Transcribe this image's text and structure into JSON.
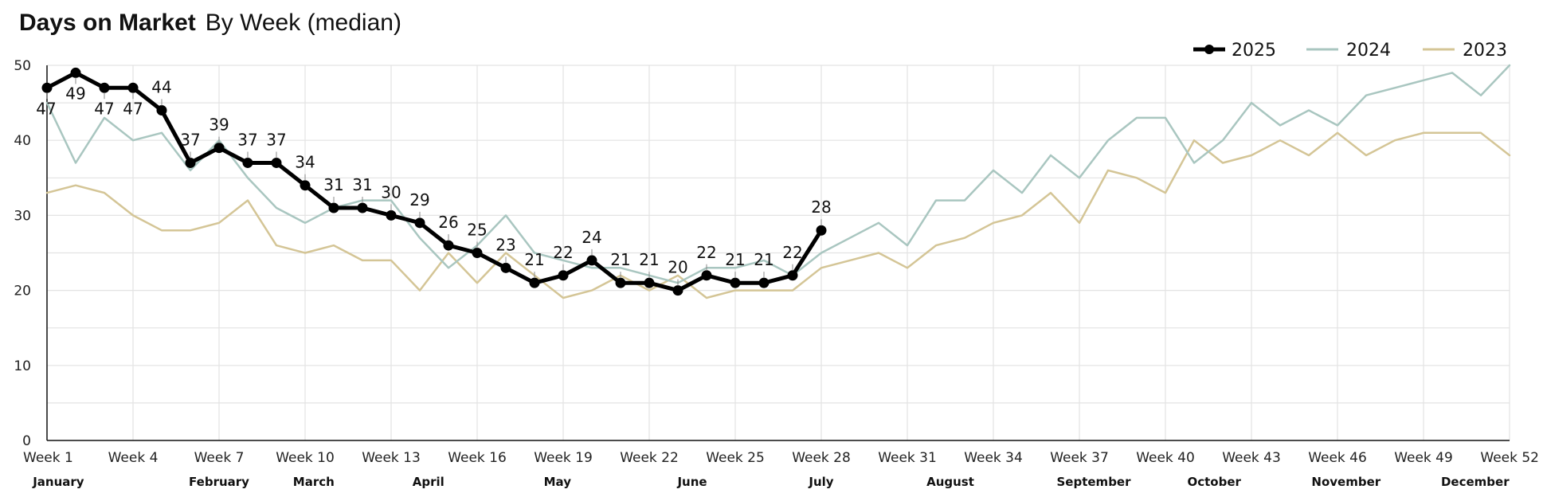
{
  "chart_data": {
    "type": "line",
    "title_bold": "Days on Market",
    "title_rest": "By Week (median)",
    "xlabel": "",
    "ylabel": "",
    "ylim": [
      0,
      50
    ],
    "yticks": [
      0,
      10,
      20,
      30,
      40,
      50
    ],
    "grid": true,
    "legend_position": "top-right",
    "x_tick_labels": [
      {
        "week": 1,
        "label": "Week 1"
      },
      {
        "week": 4,
        "label": "Week 4"
      },
      {
        "week": 7,
        "label": "Week 7"
      },
      {
        "week": 10,
        "label": "Week 10"
      },
      {
        "week": 13,
        "label": "Week 13"
      },
      {
        "week": 16,
        "label": "Week 16"
      },
      {
        "week": 19,
        "label": "Week 19"
      },
      {
        "week": 22,
        "label": "Week 22"
      },
      {
        "week": 25,
        "label": "Week 25"
      },
      {
        "week": 28,
        "label": "Week 28"
      },
      {
        "week": 31,
        "label": "Week 31"
      },
      {
        "week": 34,
        "label": "Week 34"
      },
      {
        "week": 37,
        "label": "Week 37"
      },
      {
        "week": 40,
        "label": "Week 40"
      },
      {
        "week": 43,
        "label": "Week 43"
      },
      {
        "week": 46,
        "label": "Week 46"
      },
      {
        "week": 49,
        "label": "Week 49"
      },
      {
        "week": 52,
        "label": "Week 52"
      }
    ],
    "month_labels": [
      {
        "week": 1.4,
        "label": "January"
      },
      {
        "week": 7,
        "label": "February"
      },
      {
        "week": 10.3,
        "label": "March"
      },
      {
        "week": 14.3,
        "label": "April"
      },
      {
        "week": 18.8,
        "label": "May"
      },
      {
        "week": 23.5,
        "label": "June"
      },
      {
        "week": 28,
        "label": "July"
      },
      {
        "week": 32.5,
        "label": "August"
      },
      {
        "week": 37.5,
        "label": "September"
      },
      {
        "week": 41.7,
        "label": "October"
      },
      {
        "week": 46.3,
        "label": "November"
      },
      {
        "week": 50.8,
        "label": "December"
      }
    ],
    "series": [
      {
        "name": "2023",
        "color": "#d4c596",
        "x": [
          1,
          2,
          3,
          4,
          5,
          6,
          7,
          8,
          9,
          10,
          11,
          12,
          13,
          14,
          15,
          16,
          17,
          18,
          19,
          20,
          21,
          22,
          23,
          24,
          25,
          26,
          27,
          28,
          29,
          30,
          31,
          32,
          33,
          34,
          35,
          36,
          37,
          38,
          39,
          40,
          41,
          42,
          43,
          44,
          45,
          46,
          47,
          48,
          49,
          50,
          51,
          52
        ],
        "values": [
          33,
          34,
          33,
          30,
          28,
          28,
          29,
          32,
          26,
          25,
          26,
          24,
          24,
          20,
          25,
          21,
          25,
          22,
          19,
          20,
          22,
          20,
          22,
          19,
          20,
          20,
          20,
          23,
          24,
          25,
          23,
          26,
          27,
          29,
          30,
          33,
          29,
          36,
          35,
          33,
          40,
          37,
          38,
          40,
          38,
          41,
          38,
          40,
          41,
          41,
          41,
          38
        ]
      },
      {
        "name": "2024",
        "color": "#a9c6c0",
        "x": [
          1,
          2,
          3,
          4,
          5,
          6,
          7,
          8,
          9,
          10,
          11,
          12,
          13,
          14,
          15,
          16,
          17,
          18,
          19,
          20,
          21,
          22,
          23,
          24,
          25,
          26,
          27,
          28,
          29,
          30,
          31,
          32,
          33,
          34,
          35,
          36,
          37,
          38,
          39,
          40,
          41,
          42,
          43,
          44,
          45,
          46,
          47,
          48,
          49,
          50,
          51,
          52
        ],
        "values": [
          45,
          37,
          43,
          40,
          41,
          36,
          40,
          35,
          31,
          29,
          31,
          32,
          32,
          27,
          23,
          26,
          30,
          25,
          24,
          23,
          23,
          22,
          21,
          23,
          23,
          24,
          22,
          25,
          27,
          29,
          26,
          32,
          32,
          36,
          33,
          38,
          35,
          40,
          43,
          43,
          37,
          40,
          45,
          42,
          44,
          42,
          46,
          47,
          48,
          49,
          46,
          50
        ]
      },
      {
        "name": "2025",
        "color": "#000000",
        "x": [
          1,
          2,
          3,
          4,
          5,
          6,
          7,
          8,
          9,
          10,
          11,
          12,
          13,
          14,
          15,
          16,
          17,
          18,
          19,
          20,
          21,
          22,
          23,
          24,
          25,
          26,
          27,
          28
        ],
        "values": [
          47,
          49,
          47,
          47,
          44,
          37,
          39,
          37,
          37,
          34,
          31,
          31,
          30,
          29,
          26,
          25,
          23,
          21,
          22,
          24,
          21,
          21,
          20,
          22,
          21,
          21,
          22,
          28
        ],
        "data_labels": [
          "47",
          "49",
          "47",
          "47",
          "44",
          "37",
          "39",
          "37",
          "37",
          "34",
          "31",
          "31",
          "30",
          "29",
          "26",
          "25",
          "23",
          "21",
          "22",
          "24",
          "21",
          "21",
          "20",
          "22",
          "21",
          "21",
          "22",
          "28"
        ]
      }
    ],
    "legend": [
      "2025",
      "2024",
      "2023"
    ]
  }
}
